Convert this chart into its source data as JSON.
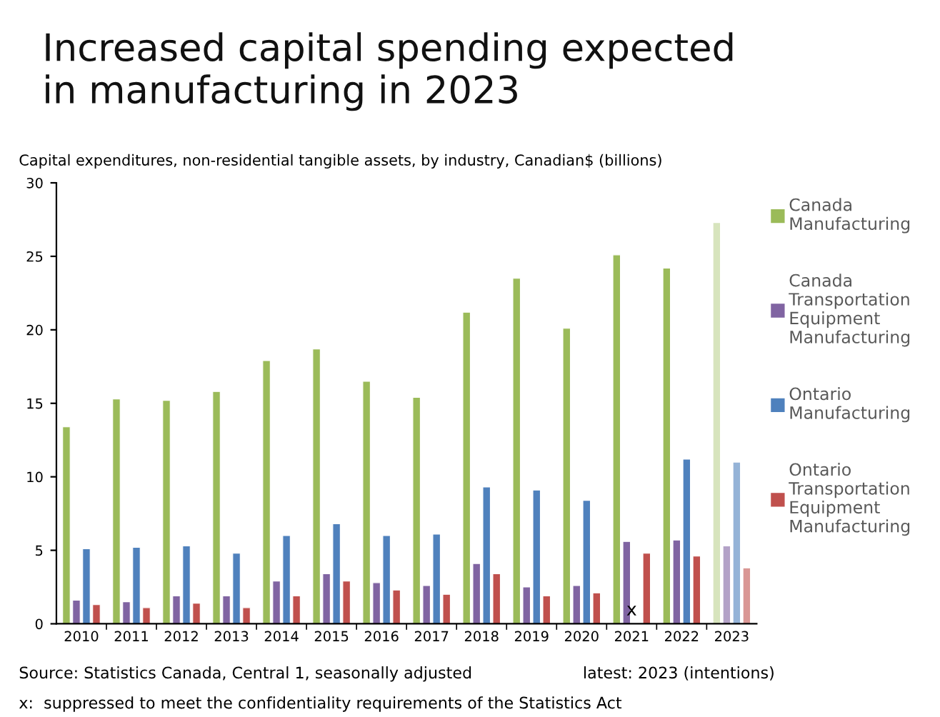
{
  "chart_data": {
    "type": "bar",
    "title": "Increased capital spending expected in manufacturing in 2023",
    "subtitle": "Capital expenditures, non-residential tangible assets, by industry, Canadian$ (billions)",
    "categories": [
      "2010",
      "2011",
      "2012",
      "2013",
      "2014",
      "2015",
      "2016",
      "2017",
      "2018",
      "2019",
      "2020",
      "2021",
      "2022",
      "2023"
    ],
    "series": [
      {
        "name": "Canada Manufacturing",
        "color": "#9bbb59",
        "colors": [
          "#9bbb59",
          "#9bbb59",
          "#9bbb59",
          "#9bbb59",
          "#9bbb59",
          "#9bbb59",
          "#9bbb59",
          "#9bbb59",
          "#9bbb59",
          "#9bbb59",
          "#9bbb59",
          "#9bbb59",
          "#9bbb59",
          "#d7e4bd"
        ],
        "values": [
          13.4,
          15.3,
          15.2,
          15.8,
          17.9,
          18.7,
          16.5,
          15.4,
          21.2,
          23.5,
          20.1,
          25.1,
          24.2,
          27.3
        ]
      },
      {
        "name": "Canada Transportation Equipment Manufacturing",
        "color": "#8064a2",
        "colors": [
          "#8064a2",
          "#8064a2",
          "#8064a2",
          "#8064a2",
          "#8064a2",
          "#8064a2",
          "#8064a2",
          "#8064a2",
          "#8064a2",
          "#8064a2",
          "#8064a2",
          "#8064a2",
          "#8064a2",
          "#b3a2c7"
        ],
        "values": [
          1.6,
          1.5,
          1.9,
          1.9,
          2.9,
          3.4,
          2.8,
          2.6,
          4.1,
          2.5,
          2.6,
          5.6,
          5.7,
          5.3
        ]
      },
      {
        "name": "Ontario Manufacturing",
        "color": "#4f81bd",
        "colors": [
          "#4f81bd",
          "#4f81bd",
          "#4f81bd",
          "#4f81bd",
          "#4f81bd",
          "#4f81bd",
          "#4f81bd",
          "#4f81bd",
          "#4f81bd",
          "#4f81bd",
          "#4f81bd",
          "#4f81bd",
          "#4f81bd",
          "#95b3d7"
        ],
        "values": [
          5.1,
          5.2,
          5.3,
          4.8,
          6.0,
          6.8,
          6.0,
          6.1,
          9.3,
          9.1,
          8.4,
          null,
          11.2,
          11.0
        ]
      },
      {
        "name": "Ontario Transportation Equipment Manufacturing",
        "color": "#c0504d",
        "colors": [
          "#c0504d",
          "#c0504d",
          "#c0504d",
          "#c0504d",
          "#c0504d",
          "#c0504d",
          "#c0504d",
          "#c0504d",
          "#c0504d",
          "#c0504d",
          "#c0504d",
          "#c0504d",
          "#c0504d",
          "#d99694"
        ],
        "values": [
          1.3,
          1.1,
          1.4,
          1.1,
          1.9,
          2.9,
          2.3,
          2.0,
          3.4,
          1.9,
          2.1,
          4.8,
          4.6,
          3.8
        ]
      }
    ],
    "ylim": [
      0,
      30
    ],
    "yticks": [
      0,
      5,
      10,
      15,
      20,
      25,
      30
    ],
    "grid": false,
    "legend": "right",
    "annotations": [
      {
        "text": "x",
        "x": "2021",
        "y": 0.9
      },
      "Source: Statistics Canada, Central 1, seasonally adjusted",
      "latest: 2023 (intentions)",
      "x:  suppressed to meet the confidentiality requirements of the Statistics Act"
    ]
  }
}
